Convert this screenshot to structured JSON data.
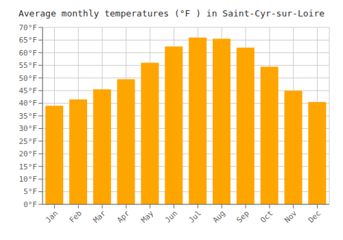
{
  "chart_data": {
    "type": "bar",
    "title": "Average monthly temperatures (°F ) in Saint-Cyr-sur-Loire",
    "categories": [
      "Jan",
      "Feb",
      "Mar",
      "Apr",
      "May",
      "Jun",
      "Jul",
      "Aug",
      "Sep",
      "Oct",
      "Nov",
      "Dec"
    ],
    "values": [
      39,
      41.5,
      45.5,
      49.5,
      56,
      62.5,
      66,
      65.5,
      62,
      54.5,
      45,
      40.5
    ],
    "color": "#FFA500",
    "ylim": [
      0,
      70
    ],
    "yticks": [
      {
        "value": 0,
        "label": "0°F"
      },
      {
        "value": 5,
        "label": "5°F"
      },
      {
        "value": 10,
        "label": "10°F"
      },
      {
        "value": 15,
        "label": "15°F"
      },
      {
        "value": 20,
        "label": "20°F"
      },
      {
        "value": 25,
        "label": "25°F"
      },
      {
        "value": 30,
        "label": "30°F"
      },
      {
        "value": 35,
        "label": "35°F"
      },
      {
        "value": 40,
        "label": "40°F"
      },
      {
        "value": 45,
        "label": "45°F"
      },
      {
        "value": 50,
        "label": "50°F"
      },
      {
        "value": 55,
        "label": "55°F"
      },
      {
        "value": 60,
        "label": "60°F"
      },
      {
        "value": 65,
        "label": "65°F"
      },
      {
        "value": 70,
        "label": "70°F"
      }
    ],
    "grid": true
  }
}
